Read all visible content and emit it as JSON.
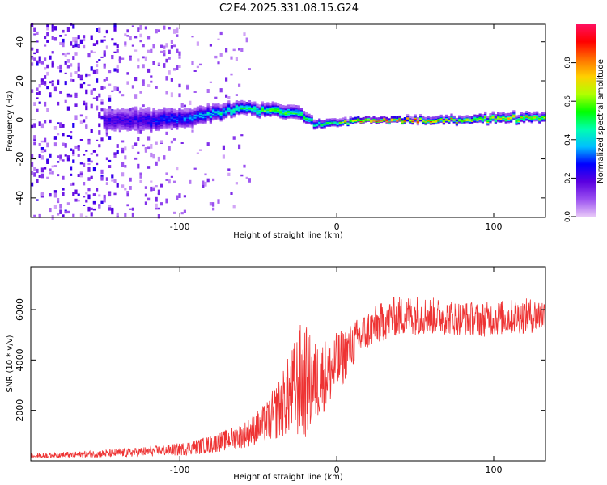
{
  "title": "C2E4.2025.331.08.15.G24",
  "chart_data": [
    {
      "type": "heatmap",
      "xlabel": "Height of straight line (km)",
      "ylabel": "Frequency (Hz)",
      "xlim": [
        -195,
        133
      ],
      "ylim": [
        -50,
        49
      ],
      "xticks": [
        -100,
        0,
        100
      ],
      "yticks": [
        -40,
        -20,
        0,
        20,
        40
      ],
      "colorbar": {
        "label": "Normalized spectral amplitude",
        "range": [
          0,
          1
        ],
        "ticks": [
          0.0,
          0.2,
          0.4,
          0.6,
          0.8
        ],
        "colormap": [
          "#e8c8f8",
          "#9a4ff0",
          "#5a00e0",
          "#0000ff",
          "#00bfff",
          "#00ffb0",
          "#00ff00",
          "#b0ff00",
          "#ffd000",
          "#ff7000",
          "#ff0000",
          "#ff1060"
        ]
      },
      "ridge": {
        "description_points_x": [
          -140,
          -120,
          -100,
          -80,
          -60,
          -40,
          -25,
          -15,
          0,
          20,
          40,
          60,
          80,
          100,
          120,
          133
        ],
        "center_frequency": [
          0,
          0,
          1,
          3,
          6,
          5,
          4,
          -2,
          -1,
          0,
          0,
          0,
          0,
          1,
          1,
          1
        ],
        "half_width": [
          6,
          6,
          5,
          4,
          3,
          3,
          3,
          2,
          1.5,
          1,
          1.2,
          1.5,
          1.5,
          2,
          2,
          2
        ],
        "peak_amplitude": [
          0.22,
          0.25,
          0.3,
          0.4,
          0.5,
          0.55,
          0.5,
          0.45,
          0.6,
          0.95,
          0.9,
          0.75,
          0.7,
          0.7,
          0.7,
          0.65
        ]
      }
    },
    {
      "type": "line",
      "xlabel": "Height of straight line (km)",
      "ylabel": "SNR (10 * v/v)",
      "xlim": [
        -195,
        133
      ],
      "ylim": [
        0,
        7700
      ],
      "xticks": [
        -100,
        0,
        100
      ],
      "yticks": [
        2000,
        4000,
        6000
      ],
      "color": "#ee3333",
      "envelope": {
        "x": [
          -195,
          -160,
          -130,
          -100,
          -80,
          -60,
          -45,
          -35,
          -28,
          -22,
          -15,
          -10,
          0,
          10,
          20,
          35,
          50,
          70,
          90,
          110,
          133
        ],
        "mean": [
          180,
          250,
          330,
          450,
          650,
          1000,
          1500,
          2200,
          2800,
          3200,
          3000,
          3300,
          3800,
          4600,
          5200,
          5700,
          5800,
          5700,
          5600,
          5700,
          5800
        ],
        "noise": [
          120,
          140,
          180,
          250,
          350,
          500,
          800,
          1300,
          1800,
          2500,
          1800,
          1500,
          1300,
          900,
          800,
          800,
          800,
          700,
          700,
          700,
          700
        ]
      }
    }
  ]
}
